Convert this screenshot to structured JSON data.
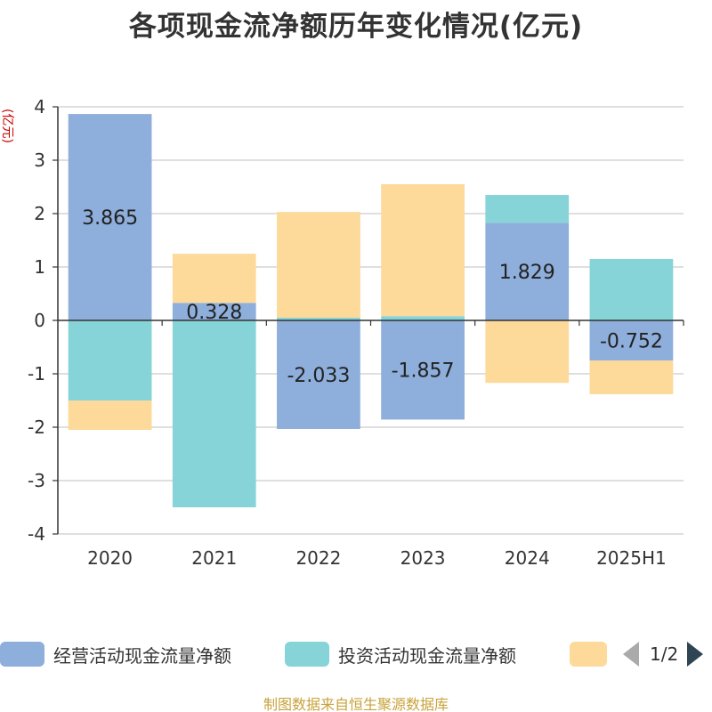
{
  "title": "各项现金流净额历年变化情况(亿元)",
  "y_unit_label": "(亿元)",
  "source_note": "制图数据来自恒生聚源数据库",
  "legend_pager_text": "1/2",
  "colors": {
    "operating": "#8eaedb",
    "investing": "#86d4d8",
    "financing": "#fdd99a",
    "axis": "#333333",
    "grid": "#cccccc",
    "unit_label": "#cc0000"
  },
  "chart_data": {
    "type": "bar",
    "stacked": true,
    "title": "各项现金流净额历年变化情况(亿元)",
    "xlabel": "",
    "ylabel": "(亿元)",
    "categories": [
      "2020",
      "2021",
      "2022",
      "2023",
      "2024",
      "2025H1"
    ],
    "ylim": [
      -4,
      4
    ],
    "yticks": [
      4,
      3,
      2,
      1,
      0,
      -1,
      -2,
      -3,
      -4
    ],
    "grid": true,
    "legend_position": "bottom",
    "series": [
      {
        "name": "经营活动现金流量净额",
        "color_key": "operating",
        "values": [
          3.865,
          0.328,
          -2.033,
          -1.857,
          1.829,
          -0.752
        ],
        "labels": [
          "3.865",
          "0.328",
          "-2.033",
          "-1.857",
          "1.829",
          "-0.752"
        ]
      },
      {
        "name": "投资活动现金流量净额",
        "color_key": "investing",
        "values": [
          -1.5,
          -3.5,
          0.05,
          0.08,
          0.52,
          1.15
        ],
        "labels": null
      },
      {
        "name": "",
        "color_key": "financing",
        "values": [
          -0.55,
          0.92,
          1.98,
          2.47,
          -1.17,
          -0.63
        ],
        "labels": null
      }
    ]
  }
}
